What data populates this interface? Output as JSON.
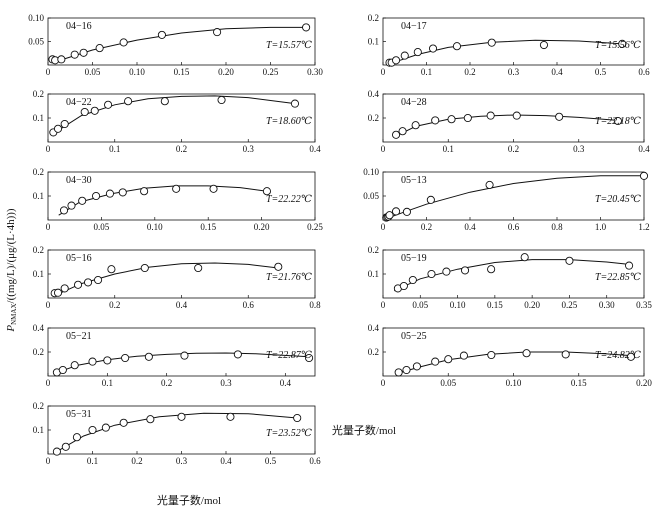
{
  "figure": {
    "ylabel_main": "P",
    "ylabel_sub": "NMAX",
    "ylabel_rest": "/((mg/L)/(μg/(L·4h)))",
    "xlabel": "光量子数/mol"
  },
  "chart_data": [
    {
      "type": "scatter",
      "title": "04−16",
      "annotation": "T=15.57℃",
      "xlim": [
        0,
        0.3
      ],
      "ylim": [
        0,
        0.1
      ],
      "xticks": [
        0,
        0.05,
        0.1,
        0.15,
        0.2,
        0.25,
        0.3
      ],
      "xtick_labels": [
        "0",
        "0.05",
        "0.10",
        "0.15",
        "0.20",
        "0.25",
        "0.30"
      ],
      "yticks": [
        0.05,
        0.1
      ],
      "ytick_labels": [
        "0.05",
        "0.10"
      ],
      "points": [
        [
          0.005,
          0.012
        ],
        [
          0.008,
          0.01
        ],
        [
          0.015,
          0.012
        ],
        [
          0.03,
          0.022
        ],
        [
          0.04,
          0.026
        ],
        [
          0.058,
          0.036
        ],
        [
          0.085,
          0.048
        ],
        [
          0.128,
          0.064
        ],
        [
          0.19,
          0.07
        ],
        [
          0.29,
          0.08
        ]
      ],
      "fit": [
        [
          0.005,
          0.005
        ],
        [
          0.05,
          0.032
        ],
        [
          0.1,
          0.053
        ],
        [
          0.15,
          0.068
        ],
        [
          0.2,
          0.077
        ],
        [
          0.25,
          0.08
        ],
        [
          0.29,
          0.08
        ]
      ]
    },
    {
      "type": "scatter",
      "title": "04−17",
      "annotation": "T=15.56℃",
      "xlim": [
        0,
        0.6
      ],
      "ylim": [
        0,
        0.2
      ],
      "xticks": [
        0,
        0.1,
        0.2,
        0.3,
        0.4,
        0.5,
        0.6
      ],
      "xtick_labels": [
        "0",
        "0.1",
        "0.2",
        "0.3",
        "0.4",
        "0.5",
        "0.6"
      ],
      "yticks": [
        0.1,
        0.2
      ],
      "ytick_labels": [
        "0.1",
        "0.2"
      ],
      "points": [
        [
          0.015,
          0.01
        ],
        [
          0.02,
          0.01
        ],
        [
          0.03,
          0.02
        ],
        [
          0.05,
          0.04
        ],
        [
          0.08,
          0.055
        ],
        [
          0.115,
          0.07
        ],
        [
          0.17,
          0.08
        ],
        [
          0.25,
          0.095
        ],
        [
          0.37,
          0.085
        ],
        [
          0.55,
          0.09
        ]
      ],
      "fit": [
        [
          0.015,
          0.005
        ],
        [
          0.08,
          0.045
        ],
        [
          0.15,
          0.075
        ],
        [
          0.25,
          0.097
        ],
        [
          0.35,
          0.105
        ],
        [
          0.45,
          0.102
        ],
        [
          0.55,
          0.09
        ]
      ]
    },
    {
      "type": "scatter",
      "title": "04−22",
      "annotation": "T=18.60℃",
      "xlim": [
        0,
        0.4
      ],
      "ylim": [
        0,
        0.2
      ],
      "xticks": [
        0,
        0.1,
        0.2,
        0.3,
        0.4
      ],
      "xtick_labels": [
        "0",
        "0.1",
        "0.2",
        "0.3",
        "0.4"
      ],
      "yticks": [
        0.1,
        0.2
      ],
      "ytick_labels": [
        "0.1",
        "0.2"
      ],
      "points": [
        [
          0.008,
          0.04
        ],
        [
          0.015,
          0.055
        ],
        [
          0.025,
          0.075
        ],
        [
          0.055,
          0.125
        ],
        [
          0.07,
          0.13
        ],
        [
          0.09,
          0.155
        ],
        [
          0.12,
          0.17
        ],
        [
          0.175,
          0.17
        ],
        [
          0.26,
          0.175
        ],
        [
          0.37,
          0.16
        ]
      ],
      "fit": [
        [
          0.005,
          0.03
        ],
        [
          0.05,
          0.11
        ],
        [
          0.1,
          0.155
        ],
        [
          0.15,
          0.18
        ],
        [
          0.2,
          0.19
        ],
        [
          0.25,
          0.192
        ],
        [
          0.3,
          0.185
        ],
        [
          0.37,
          0.16
        ]
      ]
    },
    {
      "type": "scatter",
      "title": "04−28",
      "annotation": "T=22.18℃",
      "xlim": [
        0,
        0.4
      ],
      "ylim": [
        0,
        0.4
      ],
      "xticks": [
        0,
        0.1,
        0.2,
        0.3,
        0.4
      ],
      "xtick_labels": [
        "0",
        "0.1",
        "0.2",
        "0.3",
        "0.4"
      ],
      "yticks": [
        0.2,
        0.4
      ],
      "ytick_labels": [
        "0.2",
        "0.4"
      ],
      "points": [
        [
          0.02,
          0.06
        ],
        [
          0.03,
          0.09
        ],
        [
          0.05,
          0.14
        ],
        [
          0.08,
          0.18
        ],
        [
          0.105,
          0.19
        ],
        [
          0.13,
          0.2
        ],
        [
          0.165,
          0.22
        ],
        [
          0.205,
          0.22
        ],
        [
          0.27,
          0.21
        ],
        [
          0.36,
          0.175
        ]
      ],
      "fit": [
        [
          0.02,
          0.05
        ],
        [
          0.05,
          0.13
        ],
        [
          0.1,
          0.19
        ],
        [
          0.15,
          0.215
        ],
        [
          0.2,
          0.225
        ],
        [
          0.25,
          0.22
        ],
        [
          0.3,
          0.205
        ],
        [
          0.36,
          0.18
        ]
      ]
    },
    {
      "type": "scatter",
      "title": "04−30",
      "annotation": "T=22.22℃",
      "xlim": [
        0,
        0.25
      ],
      "ylim": [
        0,
        0.2
      ],
      "xticks": [
        0,
        0.05,
        0.1,
        0.15,
        0.2,
        0.25
      ],
      "xtick_labels": [
        "0",
        "0.05",
        "0.10",
        "0.15",
        "0.20",
        "0.25"
      ],
      "yticks": [
        0.1,
        0.2
      ],
      "ytick_labels": [
        "0.1",
        "0.2"
      ],
      "points": [
        [
          0.015,
          0.04
        ],
        [
          0.022,
          0.06
        ],
        [
          0.032,
          0.08
        ],
        [
          0.045,
          0.1
        ],
        [
          0.058,
          0.11
        ],
        [
          0.07,
          0.115
        ],
        [
          0.09,
          0.12
        ],
        [
          0.12,
          0.13
        ],
        [
          0.155,
          0.13
        ],
        [
          0.205,
          0.12
        ]
      ],
      "fit": [
        [
          0.01,
          0.02
        ],
        [
          0.03,
          0.075
        ],
        [
          0.06,
          0.11
        ],
        [
          0.09,
          0.132
        ],
        [
          0.12,
          0.142
        ],
        [
          0.15,
          0.142
        ],
        [
          0.18,
          0.135
        ],
        [
          0.205,
          0.12
        ]
      ]
    },
    {
      "type": "scatter",
      "title": "05−13",
      "annotation": "T=20.45℃",
      "xlim": [
        0,
        1.2
      ],
      "ylim": [
        0,
        0.1
      ],
      "xticks": [
        0,
        0.2,
        0.4,
        0.6,
        0.8,
        1.0,
        1.2
      ],
      "xtick_labels": [
        "0",
        "0.2",
        "0.4",
        "0.6",
        "0.8",
        "1.0",
        "1.2"
      ],
      "yticks": [
        0.05,
        0.1
      ],
      "ytick_labels": [
        "0.05",
        "0.10"
      ],
      "points": [
        [
          0.015,
          0.005
        ],
        [
          0.02,
          0.006
        ],
        [
          0.025,
          0.007
        ],
        [
          0.03,
          0.01
        ],
        [
          0.06,
          0.018
        ],
        [
          0.11,
          0.017
        ],
        [
          0.22,
          0.042
        ],
        [
          0.49,
          0.073
        ],
        [
          1.2,
          0.092
        ]
      ],
      "fit": [
        [
          0.01,
          0.002
        ],
        [
          0.1,
          0.017
        ],
        [
          0.2,
          0.033
        ],
        [
          0.4,
          0.058
        ],
        [
          0.6,
          0.076
        ],
        [
          0.8,
          0.087
        ],
        [
          1.0,
          0.092
        ],
        [
          1.2,
          0.092
        ]
      ]
    },
    {
      "type": "scatter",
      "title": "05−16",
      "annotation": "T=21.76℃",
      "xlim": [
        0,
        0.8
      ],
      "ylim": [
        0,
        0.2
      ],
      "xticks": [
        0,
        0.2,
        0.4,
        0.6,
        0.8
      ],
      "xtick_labels": [
        "0",
        "0.2",
        "0.4",
        "0.6",
        "0.8"
      ],
      "yticks": [
        0.1,
        0.2
      ],
      "ytick_labels": [
        "0.1",
        "0.2"
      ],
      "points": [
        [
          0.02,
          0.02
        ],
        [
          0.03,
          0.022
        ],
        [
          0.05,
          0.04
        ],
        [
          0.09,
          0.055
        ],
        [
          0.12,
          0.065
        ],
        [
          0.15,
          0.075
        ],
        [
          0.19,
          0.12
        ],
        [
          0.29,
          0.125
        ],
        [
          0.45,
          0.125
        ],
        [
          0.69,
          0.13
        ]
      ],
      "fit": [
        [
          0.02,
          0.01
        ],
        [
          0.1,
          0.06
        ],
        [
          0.2,
          0.1
        ],
        [
          0.3,
          0.128
        ],
        [
          0.4,
          0.143
        ],
        [
          0.5,
          0.146
        ],
        [
          0.6,
          0.14
        ],
        [
          0.69,
          0.125
        ]
      ]
    },
    {
      "type": "scatter",
      "title": "05−19",
      "annotation": "T=22.85℃",
      "xlim": [
        0,
        0.35
      ],
      "ylim": [
        0,
        0.2
      ],
      "xticks": [
        0,
        0.05,
        0.1,
        0.15,
        0.2,
        0.25,
        0.3,
        0.35
      ],
      "xtick_labels": [
        "0",
        "0.05",
        "0.10",
        "0.15",
        "0.20",
        "0.25",
        "0.30",
        "0.35"
      ],
      "yticks": [
        0.1,
        0.2
      ],
      "ytick_labels": [
        "0.1",
        "0.2"
      ],
      "points": [
        [
          0.02,
          0.04
        ],
        [
          0.028,
          0.05
        ],
        [
          0.04,
          0.075
        ],
        [
          0.065,
          0.1
        ],
        [
          0.085,
          0.11
        ],
        [
          0.11,
          0.115
        ],
        [
          0.145,
          0.12
        ],
        [
          0.19,
          0.17
        ],
        [
          0.25,
          0.155
        ],
        [
          0.33,
          0.135
        ]
      ],
      "fit": [
        [
          0.015,
          0.03
        ],
        [
          0.05,
          0.08
        ],
        [
          0.1,
          0.12
        ],
        [
          0.15,
          0.148
        ],
        [
          0.2,
          0.16
        ],
        [
          0.25,
          0.16
        ],
        [
          0.3,
          0.15
        ],
        [
          0.33,
          0.14
        ]
      ]
    },
    {
      "type": "scatter",
      "title": "05−21",
      "annotation": "T=22.87℃",
      "xlim": [
        0,
        0.45
      ],
      "ylim": [
        0,
        0.4
      ],
      "xticks": [
        0,
        0.1,
        0.2,
        0.3,
        0.4
      ],
      "xtick_labels": [
        "0",
        "0.1",
        "0.2",
        "0.3",
        "0.4"
      ],
      "yticks": [
        0.2,
        0.4
      ],
      "ytick_labels": [
        "0.2",
        "0.4"
      ],
      "points": [
        [
          0.015,
          0.03
        ],
        [
          0.025,
          0.05
        ],
        [
          0.045,
          0.09
        ],
        [
          0.075,
          0.12
        ],
        [
          0.1,
          0.13
        ],
        [
          0.13,
          0.15
        ],
        [
          0.17,
          0.16
        ],
        [
          0.23,
          0.17
        ],
        [
          0.32,
          0.18
        ],
        [
          0.44,
          0.15
        ]
      ],
      "fit": [
        [
          0.01,
          0.02
        ],
        [
          0.05,
          0.09
        ],
        [
          0.1,
          0.135
        ],
        [
          0.15,
          0.165
        ],
        [
          0.2,
          0.18
        ],
        [
          0.25,
          0.19
        ],
        [
          0.3,
          0.192
        ],
        [
          0.35,
          0.185
        ],
        [
          0.44,
          0.16
        ]
      ]
    },
    {
      "type": "scatter",
      "title": "05−25",
      "annotation": "T=24.82℃",
      "xlim": [
        0,
        0.2
      ],
      "ylim": [
        0,
        0.4
      ],
      "xticks": [
        0,
        0.05,
        0.1,
        0.15,
        0.2
      ],
      "xtick_labels": [
        "0",
        "0.05",
        "0.10",
        "0.15",
        "0.20"
      ],
      "yticks": [
        0.2,
        0.4
      ],
      "ytick_labels": [
        "0.2",
        "0.4"
      ],
      "points": [
        [
          0.012,
          0.03
        ],
        [
          0.018,
          0.05
        ],
        [
          0.026,
          0.08
        ],
        [
          0.04,
          0.12
        ],
        [
          0.05,
          0.14
        ],
        [
          0.062,
          0.17
        ],
        [
          0.083,
          0.175
        ],
        [
          0.11,
          0.19
        ],
        [
          0.14,
          0.18
        ],
        [
          0.19,
          0.16
        ]
      ],
      "fit": [
        [
          0.01,
          0.02
        ],
        [
          0.03,
          0.08
        ],
        [
          0.05,
          0.135
        ],
        [
          0.08,
          0.18
        ],
        [
          0.11,
          0.2
        ],
        [
          0.14,
          0.2
        ],
        [
          0.17,
          0.185
        ],
        [
          0.19,
          0.17
        ]
      ]
    },
    {
      "type": "scatter",
      "title": "05−31",
      "annotation": "T=23.52℃",
      "xlim": [
        0,
        0.6
      ],
      "ylim": [
        0,
        0.2
      ],
      "xticks": [
        0,
        0.1,
        0.2,
        0.3,
        0.4,
        0.5,
        0.6
      ],
      "xtick_labels": [
        "0",
        "0.1",
        "0.2",
        "0.3",
        "0.4",
        "0.5",
        "0.6"
      ],
      "yticks": [
        0.1,
        0.2
      ],
      "ytick_labels": [
        "0.1",
        "0.2"
      ],
      "points": [
        [
          0.02,
          0.01
        ],
        [
          0.04,
          0.03
        ],
        [
          0.065,
          0.07
        ],
        [
          0.1,
          0.1
        ],
        [
          0.13,
          0.11
        ],
        [
          0.17,
          0.13
        ],
        [
          0.23,
          0.145
        ],
        [
          0.3,
          0.155
        ],
        [
          0.41,
          0.155
        ],
        [
          0.56,
          0.15
        ]
      ],
      "fit": [
        [
          0.015,
          0.005
        ],
        [
          0.08,
          0.075
        ],
        [
          0.15,
          0.12
        ],
        [
          0.25,
          0.155
        ],
        [
          0.35,
          0.17
        ],
        [
          0.45,
          0.168
        ],
        [
          0.56,
          0.15
        ]
      ]
    }
  ]
}
